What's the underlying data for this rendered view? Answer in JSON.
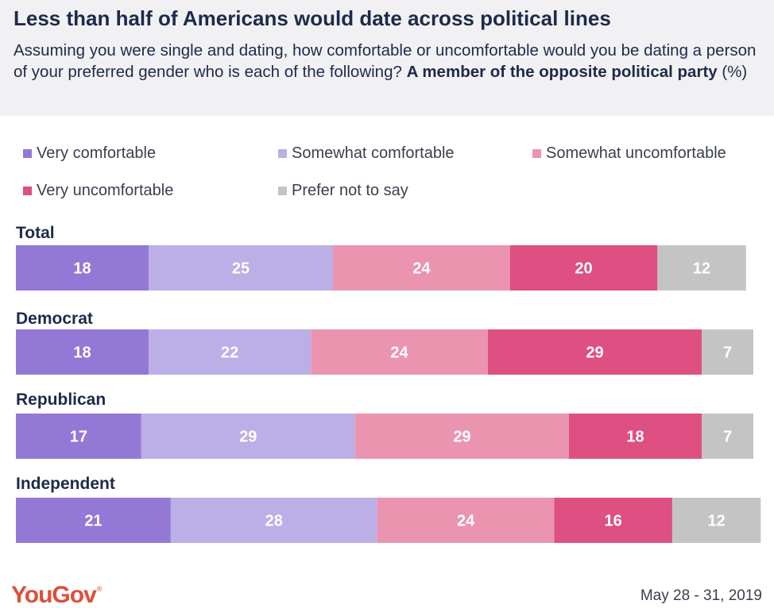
{
  "header": {
    "title": "Less than half of Americans would date across political lines",
    "subtitle_text": "Assuming you were single and dating, how comfortable or uncomfortable would you be dating a person of your preferred gender who is each of the following?",
    "subtitle_bold": "A member of the opposite political party",
    "subtitle_suffix": "(%)"
  },
  "footer": {
    "brand": "YouGov",
    "brand_mark": "®",
    "date": "May 28 - 31, 2019"
  },
  "colors": {
    "very_comfortable": "#9478d6",
    "somewhat_comfortable": "#bcaee6",
    "somewhat_uncomfortable": "#ea94b0",
    "very_uncomfortable": "#de4f82",
    "prefer_not": "#c4c4c4"
  },
  "chart_data": {
    "type": "bar",
    "orientation": "horizontal",
    "stacked": true,
    "unit": "%",
    "legend": [
      "Very comfortable",
      "Somewhat comfortable",
      "Somewhat uncomfortable",
      "Very uncomfortable",
      "Prefer not to say"
    ],
    "legend_placement": "top",
    "categories": [
      "Total",
      "Democrat",
      "Republican",
      "Independent"
    ],
    "series": [
      {
        "name": "Very comfortable",
        "color": "#9478d6",
        "values": [
          18,
          18,
          17,
          21
        ]
      },
      {
        "name": "Somewhat comfortable",
        "color": "#bcaee6",
        "values": [
          25,
          22,
          29,
          28
        ]
      },
      {
        "name": "Somewhat uncomfortable",
        "color": "#ea94b0",
        "values": [
          24,
          24,
          29,
          24
        ]
      },
      {
        "name": "Very uncomfortable",
        "color": "#de4f82",
        "values": [
          20,
          29,
          18,
          16
        ]
      },
      {
        "name": "Prefer not to say",
        "color": "#c4c4c4",
        "values": [
          12,
          7,
          7,
          12
        ]
      }
    ],
    "grid": false
  }
}
